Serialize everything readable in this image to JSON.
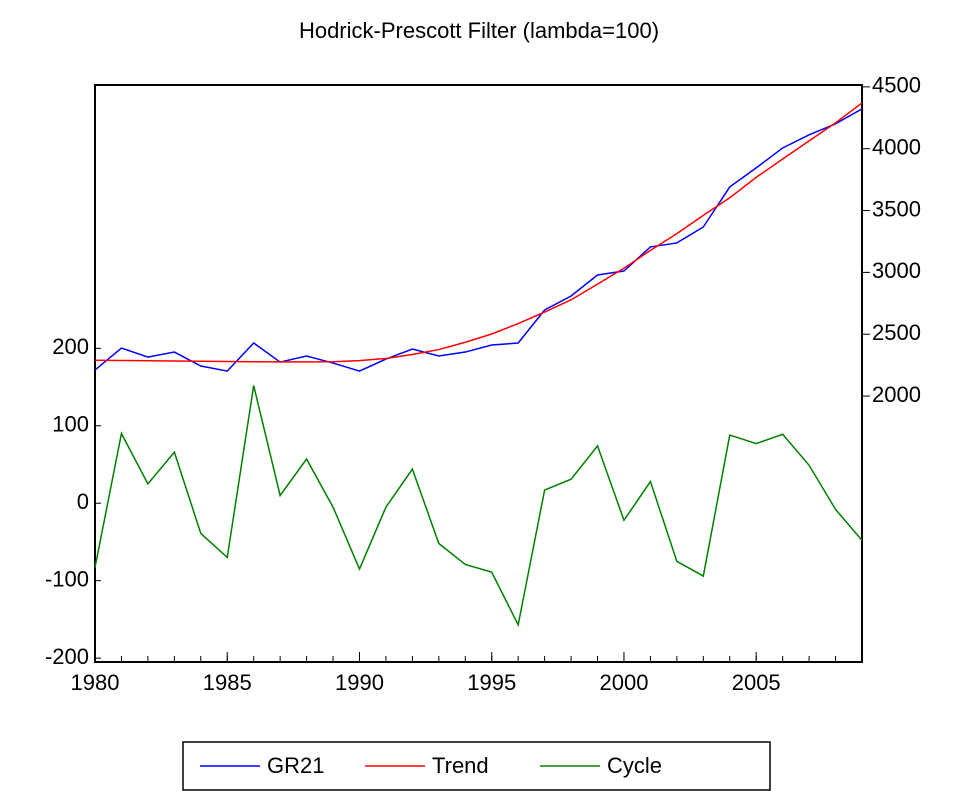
{
  "chart_data": {
    "type": "line",
    "title": "Hodrick-Prescott Filter (lambda=100)",
    "x": [
      1980,
      1981,
      1982,
      1983,
      1984,
      1985,
      1986,
      1987,
      1988,
      1989,
      1990,
      1991,
      1992,
      1993,
      1994,
      1995,
      1996,
      1997,
      1998,
      1999,
      2000,
      2001,
      2002,
      2003,
      2004,
      2005,
      2006,
      2007,
      2008,
      2009
    ],
    "xlim": [
      1980,
      2009
    ],
    "xticks": [
      1980,
      1985,
      1990,
      1995,
      2000,
      2005
    ],
    "ylim": [
      -205,
      540
    ],
    "yticks": [
      -200,
      -100,
      0,
      100,
      200
    ],
    "y2lim": [
      -150,
      4515
    ],
    "y2ticks": [
      2000,
      2500,
      3000,
      3500,
      4000,
      4500
    ],
    "legend": "bottom",
    "series": [
      {
        "name": "GR21",
        "color": "#0000ff",
        "axis": "y2",
        "values": [
          2210,
          2388,
          2315,
          2356,
          2243,
          2202,
          2429,
          2275,
          2324,
          2267,
          2202,
          2299,
          2380,
          2324,
          2356,
          2413,
          2429,
          2696,
          2809,
          2979,
          3011,
          3206,
          3238,
          3367,
          3691,
          3845,
          4006,
          4112,
          4201,
          4322
        ]
      },
      {
        "name": "Trend",
        "color": "#ff0000",
        "axis": "y2",
        "values": [
          2290,
          2288,
          2286,
          2284,
          2282,
          2280,
          2278,
          2276,
          2276,
          2278,
          2287,
          2304,
          2336,
          2376,
          2435,
          2502,
          2586,
          2679,
          2778,
          2905,
          3033,
          3178,
          3313,
          3461,
          3603,
          3768,
          3917,
          4063,
          4209,
          4370
        ]
      },
      {
        "name": "Cycle",
        "color": "#008000",
        "values": [
          -83,
          90,
          25,
          66,
          -39,
          -70,
          152,
          10,
          57,
          -5,
          -85,
          -5,
          44,
          -52,
          -79,
          -89,
          -157,
          17,
          31,
          74,
          -22,
          28,
          -75,
          -94,
          88,
          77,
          89,
          49,
          -8,
          -48
        ]
      }
    ]
  }
}
